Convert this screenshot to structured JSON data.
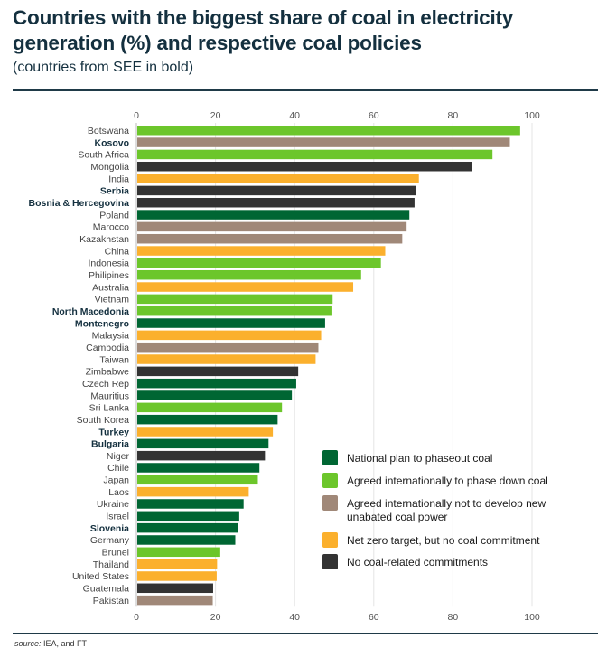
{
  "header": {
    "title": "Countries with the biggest share of coal in electricity generation (%) and respective coal policies",
    "subtitle": "(countries from SEE in bold)"
  },
  "source": {
    "label": "source:",
    "text": " IEA, and FT"
  },
  "chart_data": {
    "type": "bar",
    "orientation": "horizontal",
    "title": "Countries with the biggest share of coal in electricity generation (%) and respective coal policies",
    "subtitle": "(countries from SEE in bold)",
    "xlabel": "",
    "ylabel": "",
    "xlim": [
      0,
      100
    ],
    "xticks": [
      0,
      20,
      40,
      60,
      80,
      100
    ],
    "grid": true,
    "legend_position": "bottom-right",
    "categories_legend": [
      {
        "key": "phaseout",
        "label": "National plan to phaseout coal",
        "color": "#006633"
      },
      {
        "key": "phasedown",
        "label": "Agreed internationally to phase down coal",
        "color": "#6cc62b"
      },
      {
        "key": "nonew",
        "label": "Agreed internationally not to develop new unabated coal power",
        "color": "#a08878"
      },
      {
        "key": "netzero",
        "label": "Net zero target, but no coal commitment",
        "color": "#fbb02d"
      },
      {
        "key": "none",
        "label": "No coal-related commitments",
        "color": "#333333"
      }
    ],
    "bars": [
      {
        "country": "Botswana",
        "value": 97,
        "policy": "phasedown",
        "see": false
      },
      {
        "country": "Kosovo",
        "value": 94.4,
        "policy": "nonew",
        "see": true
      },
      {
        "country": "South Africa",
        "value": 90,
        "policy": "phasedown",
        "see": false
      },
      {
        "country": "Mongolia",
        "value": 84.8,
        "policy": "none",
        "see": false
      },
      {
        "country": "India",
        "value": 71.4,
        "policy": "netzero",
        "see": false
      },
      {
        "country": "Serbia",
        "value": 70.7,
        "policy": "none",
        "see": true
      },
      {
        "country": "Bosnia & Hercegovina",
        "value": 70.3,
        "policy": "none",
        "see": true
      },
      {
        "country": "Poland",
        "value": 69,
        "policy": "phaseout",
        "see": false
      },
      {
        "country": "Marocco",
        "value": 68.3,
        "policy": "nonew",
        "see": false
      },
      {
        "country": "Kazakhstan",
        "value": 67.2,
        "policy": "nonew",
        "see": false
      },
      {
        "country": "China",
        "value": 62.9,
        "policy": "netzero",
        "see": false
      },
      {
        "country": "Indonesia",
        "value": 61.8,
        "policy": "phasedown",
        "see": false
      },
      {
        "country": "Philipines",
        "value": 56.8,
        "policy": "phasedown",
        "see": false
      },
      {
        "country": "Australia",
        "value": 54.8,
        "policy": "netzero",
        "see": false
      },
      {
        "country": "Vietnam",
        "value": 49.6,
        "policy": "phasedown",
        "see": false
      },
      {
        "country": "North Macedonia",
        "value": 49.3,
        "policy": "phasedown",
        "see": true
      },
      {
        "country": "Montenegro",
        "value": 47.7,
        "policy": "phaseout",
        "see": true
      },
      {
        "country": "Malaysia",
        "value": 46.7,
        "policy": "netzero",
        "see": false
      },
      {
        "country": "Cambodia",
        "value": 46,
        "policy": "nonew",
        "see": false
      },
      {
        "country": "Taiwan",
        "value": 45.3,
        "policy": "netzero",
        "see": false
      },
      {
        "country": "Zimbabwe",
        "value": 40.9,
        "policy": "none",
        "see": false
      },
      {
        "country": "Czech Rep",
        "value": 40.4,
        "policy": "phaseout",
        "see": false
      },
      {
        "country": "Mauritius",
        "value": 39.3,
        "policy": "phaseout",
        "see": false
      },
      {
        "country": "Sri Lanka",
        "value": 36.8,
        "policy": "phasedown",
        "see": false
      },
      {
        "country": "South Korea",
        "value": 35.7,
        "policy": "phaseout",
        "see": false
      },
      {
        "country": "Turkey",
        "value": 34.5,
        "policy": "netzero",
        "see": true
      },
      {
        "country": "Bulgaria",
        "value": 33.4,
        "policy": "phaseout",
        "see": true
      },
      {
        "country": "Niger",
        "value": 32.5,
        "policy": "none",
        "see": false
      },
      {
        "country": "Chile",
        "value": 31.1,
        "policy": "phaseout",
        "see": false
      },
      {
        "country": "Japan",
        "value": 30.7,
        "policy": "phasedown",
        "see": false
      },
      {
        "country": "Laos",
        "value": 28.4,
        "policy": "netzero",
        "see": false
      },
      {
        "country": "Ukraine",
        "value": 27.1,
        "policy": "phaseout",
        "see": false
      },
      {
        "country": "Israel",
        "value": 26,
        "policy": "phaseout",
        "see": false
      },
      {
        "country": "Slovenia",
        "value": 25.6,
        "policy": "phaseout",
        "see": true
      },
      {
        "country": "Germany",
        "value": 25,
        "policy": "phaseout",
        "see": false
      },
      {
        "country": "Brunei",
        "value": 21.2,
        "policy": "phasedown",
        "see": false
      },
      {
        "country": "Thailand",
        "value": 20.4,
        "policy": "netzero",
        "see": false
      },
      {
        "country": "United States",
        "value": 20.3,
        "policy": "netzero",
        "see": false
      },
      {
        "country": "Guatemala",
        "value": 19.4,
        "policy": "none",
        "see": false
      },
      {
        "country": "Pakistan",
        "value": 19.3,
        "policy": "nonew",
        "see": false
      }
    ]
  }
}
